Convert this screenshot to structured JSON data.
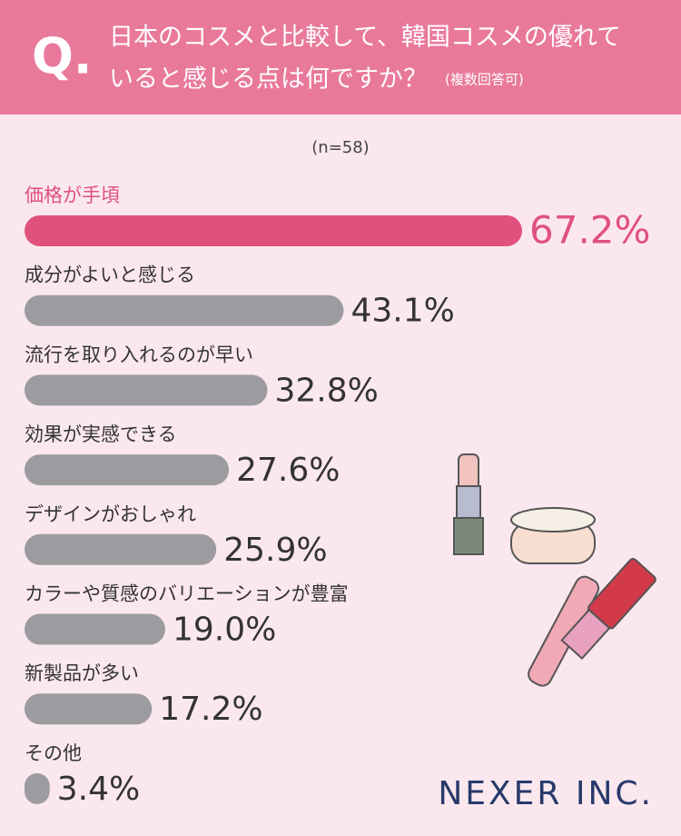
{
  "header": {
    "q_mark": "Q.",
    "title_line1": "日本のコスメと比較して、韓国コスメの優れて",
    "title_line2": "いると感じる点は何ですか？",
    "note": "(複数回答可)"
  },
  "chart_data": {
    "type": "hbar",
    "subtitle": "(n=58)",
    "categories": [
      "価格が手頃",
      "成分がよいと感じる",
      "流行を取り入れるのが早い",
      "効果が実感できる",
      "デザインがおしゃれ",
      "カラーや質感のバリエーションが豊富",
      "新製品が多い",
      "その他"
    ],
    "values": [
      67.2,
      43.1,
      32.8,
      27.6,
      25.9,
      19.0,
      17.2,
      3.4
    ],
    "value_labels": [
      "67.2%",
      "43.1%",
      "32.8%",
      "27.6%",
      "25.9%",
      "19.0%",
      "17.2%",
      "3.4%"
    ],
    "color": "#9c9ca0",
    "highlight_color": "#e0517e",
    "highlight_index": 0
  },
  "logo": "NEXER INC."
}
